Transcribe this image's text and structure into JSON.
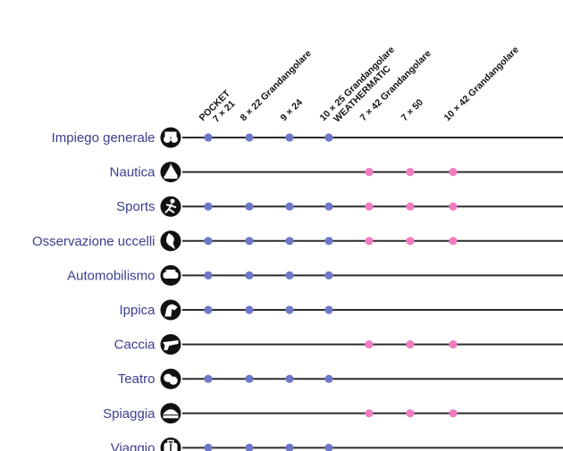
{
  "chart_data": {
    "type": "table",
    "title": "",
    "columns": [
      {
        "line1": "POCKET",
        "line2": "7 × 21"
      },
      {
        "line1": "8 × 22 Grandangolare",
        "line2": ""
      },
      {
        "line1": "9 × 24",
        "line2": ""
      },
      {
        "line1": "10 × 25 Grandangolare",
        "line2": "WEATHERMATIC"
      },
      {
        "line1": "7 × 42 Grandangolare",
        "line2": ""
      },
      {
        "line1": "7 × 50",
        "line2": ""
      },
      {
        "line1": "10 × 42 Grandangolare",
        "line2": ""
      }
    ],
    "rows": [
      {
        "label": "Impiego generale",
        "icon": "binoculars-icon",
        "columns": [
          1,
          2,
          3,
          4
        ]
      },
      {
        "label": "Nautica",
        "icon": "sailboat-icon",
        "columns": [
          5,
          6,
          7
        ]
      },
      {
        "label": "Sports",
        "icon": "runner-icon",
        "columns": [
          1,
          2,
          3,
          4,
          5,
          6,
          7
        ]
      },
      {
        "label": "Osservazione uccelli",
        "icon": "bird-icon",
        "columns": [
          1,
          2,
          3,
          4,
          5,
          6,
          7
        ]
      },
      {
        "label": "Automobilismo",
        "icon": "car-icon",
        "columns": [
          1,
          2,
          3,
          4
        ]
      },
      {
        "label": "Ippica",
        "icon": "horse-icon",
        "columns": [
          1,
          2,
          3,
          4
        ]
      },
      {
        "label": "Caccia",
        "icon": "hunting-icon",
        "columns": [
          5,
          6,
          7
        ]
      },
      {
        "label": "Teatro",
        "icon": "theater-icon",
        "columns": [
          1,
          2,
          3,
          4
        ]
      },
      {
        "label": "Spiaggia",
        "icon": "beach-icon",
        "columns": [
          5,
          6,
          7
        ]
      },
      {
        "label": "Viaggio",
        "icon": "luggage-icon",
        "columns": [
          1,
          2,
          3,
          4
        ]
      }
    ],
    "colors": {
      "group_compact": "#6f78c8",
      "group_wide": "#f07cc0",
      "line": "#2b2b2b",
      "label": "#3a3f8f"
    },
    "color_groups": {
      "compact_columns": [
        1,
        2,
        3,
        4
      ],
      "wide_columns": [
        5,
        6,
        7
      ]
    }
  }
}
